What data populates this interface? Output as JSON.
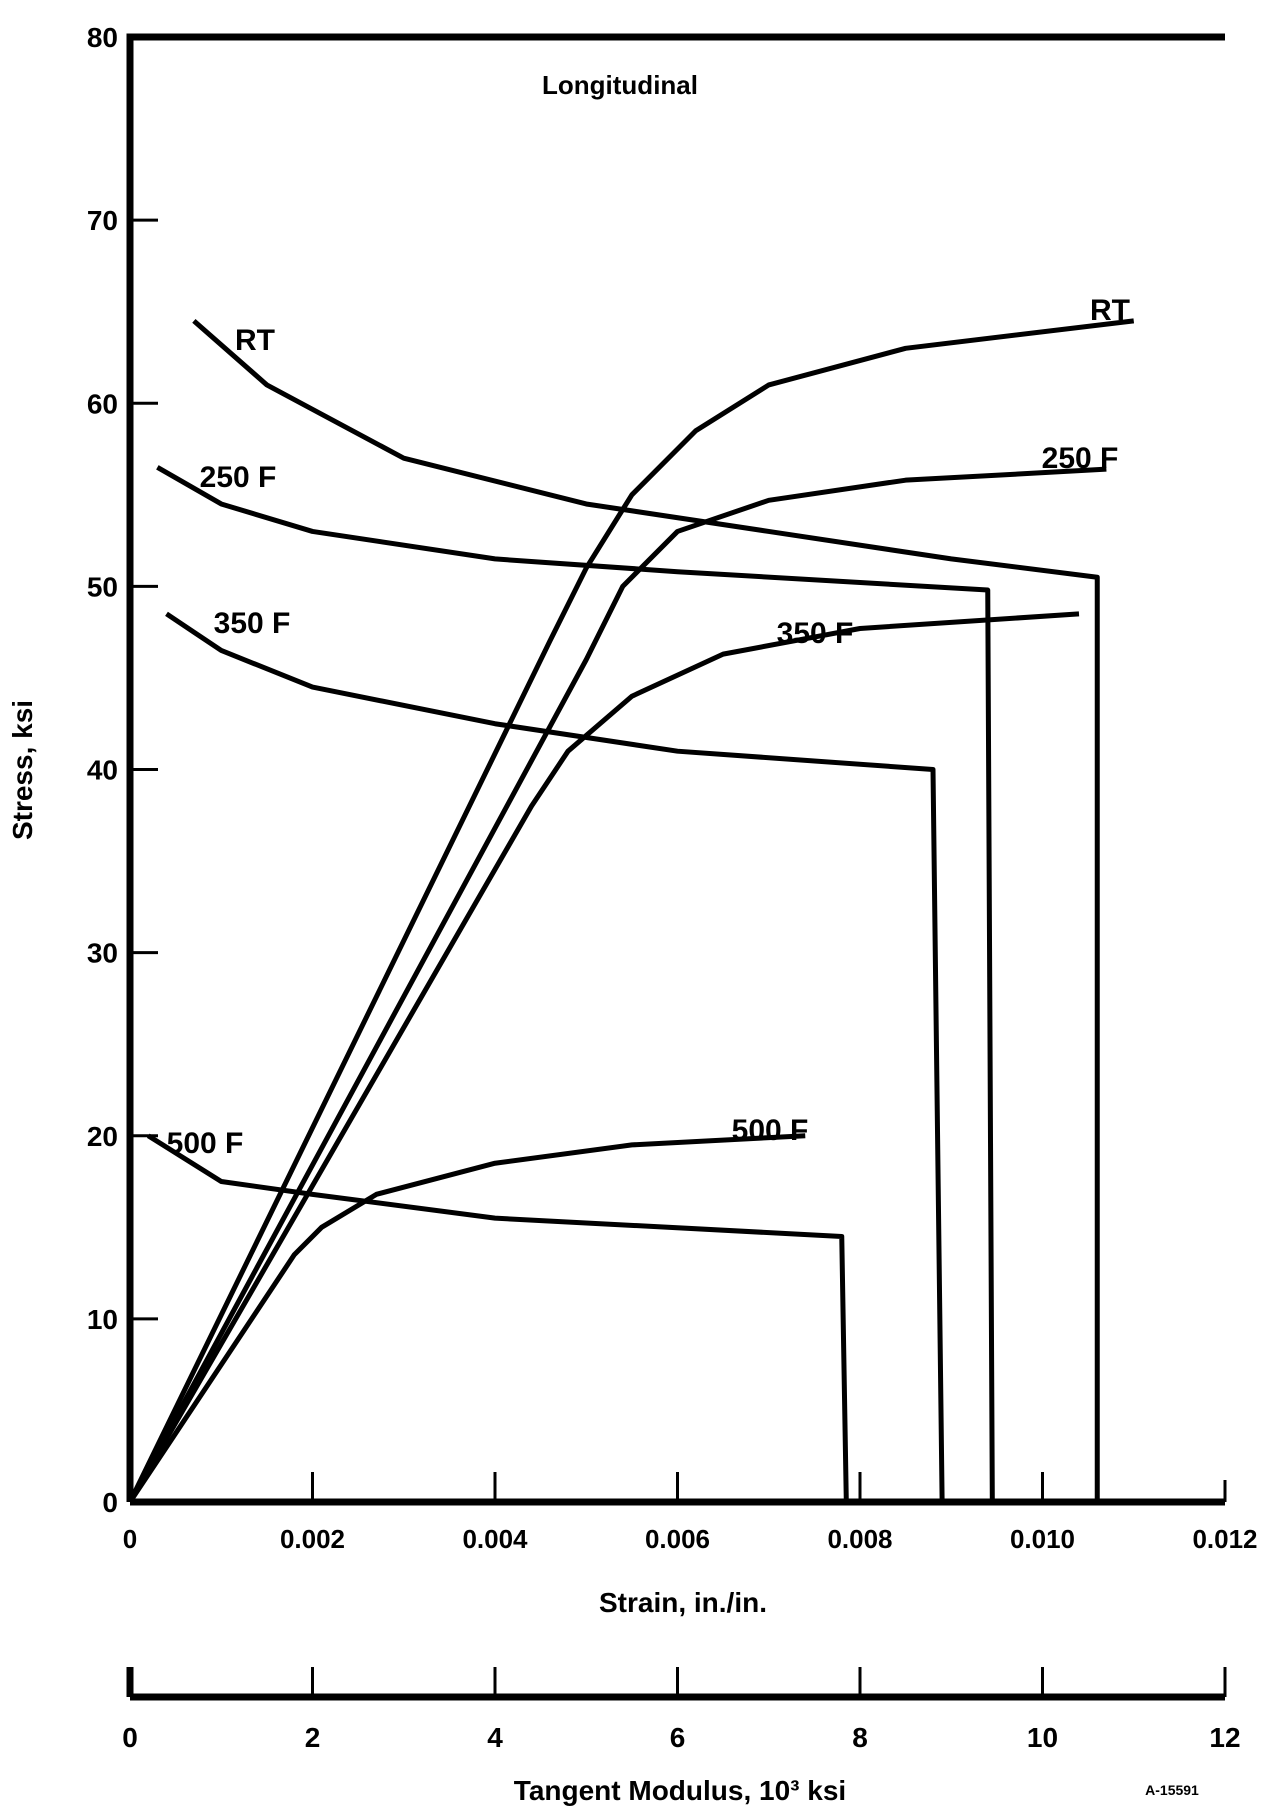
{
  "chart_data": {
    "type": "line",
    "title": "Longitudinal",
    "xlabel": "Strain, in./in.",
    "ylabel": "Stress, ksi",
    "x2label": "Tangent Modulus, 10³ ksi",
    "xlim": [
      0,
      0.012
    ],
    "ylim": [
      0,
      80
    ],
    "x2lim": [
      0,
      12
    ],
    "xticks": [
      "0",
      "0.002",
      "0.004",
      "0.006",
      "0.008",
      "0.010",
      "0.012"
    ],
    "yticks": [
      "0",
      "10",
      "20",
      "30",
      "40",
      "50",
      "60",
      "70",
      "80"
    ],
    "x2ticks": [
      "0",
      "2",
      "4",
      "6",
      "8",
      "10",
      "12"
    ],
    "grid": false,
    "figure_id": "A-15591",
    "stress_strain": [
      {
        "name": "RT",
        "label": "RT",
        "points": [
          [
            0,
            0
          ],
          [
            0.0046,
            47
          ],
          [
            0.005,
            51
          ],
          [
            0.0055,
            55
          ],
          [
            0.0062,
            58.5
          ],
          [
            0.007,
            61
          ],
          [
            0.0085,
            63
          ],
          [
            0.011,
            64.5
          ]
        ]
      },
      {
        "name": "250 F",
        "label": "250 F",
        "points": [
          [
            0,
            0
          ],
          [
            0.005,
            46
          ],
          [
            0.0054,
            50
          ],
          [
            0.006,
            53
          ],
          [
            0.007,
            54.7
          ],
          [
            0.0085,
            55.8
          ],
          [
            0.0107,
            56.4
          ]
        ]
      },
      {
        "name": "350 F",
        "label": "350 F",
        "points": [
          [
            0,
            0
          ],
          [
            0.0044,
            38
          ],
          [
            0.0048,
            41
          ],
          [
            0.0055,
            44
          ],
          [
            0.0065,
            46.3
          ],
          [
            0.008,
            47.7
          ],
          [
            0.0104,
            48.5
          ]
        ]
      },
      {
        "name": "500 F",
        "label": "500 F",
        "points": [
          [
            0,
            0
          ],
          [
            0.0018,
            13.5
          ],
          [
            0.0021,
            15
          ],
          [
            0.0027,
            16.8
          ],
          [
            0.004,
            18.5
          ],
          [
            0.0055,
            19.5
          ],
          [
            0.0074,
            20
          ]
        ]
      }
    ],
    "tangent_modulus": [
      {
        "name": "RT",
        "label": "RT",
        "points": [
          [
            0.7,
            64.5
          ],
          [
            1.5,
            61
          ],
          [
            3,
            57
          ],
          [
            5,
            54.5
          ],
          [
            7,
            53
          ],
          [
            9,
            51.5
          ],
          [
            10.6,
            50.5
          ],
          [
            10.6,
            0
          ]
        ]
      },
      {
        "name": "250 F",
        "label": "250 F",
        "points": [
          [
            0.3,
            56.5
          ],
          [
            1,
            54.5
          ],
          [
            2,
            53
          ],
          [
            4,
            51.5
          ],
          [
            6,
            50.8
          ],
          [
            9.4,
            49.8
          ],
          [
            9.45,
            0
          ]
        ]
      },
      {
        "name": "350 F",
        "label": "350 F",
        "points": [
          [
            0.4,
            48.5
          ],
          [
            1,
            46.5
          ],
          [
            2,
            44.5
          ],
          [
            4,
            42.5
          ],
          [
            6,
            41
          ],
          [
            8.8,
            40
          ],
          [
            8.9,
            0
          ]
        ]
      },
      {
        "name": "500 F",
        "label": "500 F",
        "points": [
          [
            0.2,
            20
          ],
          [
            1,
            17.5
          ],
          [
            2,
            16.8
          ],
          [
            4,
            15.5
          ],
          [
            7.8,
            14.5
          ],
          [
            7.85,
            0
          ]
        ]
      }
    ]
  }
}
